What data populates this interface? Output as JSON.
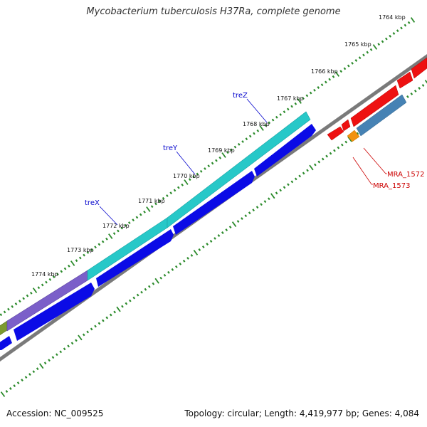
{
  "header": {
    "title": "Mycobacterium tuberculosis H37Ra, complete genome"
  },
  "footer": {
    "accession": "Accession: NC_009525",
    "summary": "Topology: circular; Length: 4,419,977 bp; Genes: 4,084"
  },
  "colors": {
    "tick": "#2a8a2a",
    "backbone": "#7a7a7a",
    "strand_forward": "#0b0be6",
    "strand_cyan": "#27c8c8",
    "strand_purple": "#7b5fc9",
    "strand_olive": "#7c9a30",
    "red_genes": "#ee1111",
    "orange_gene": "#f29211",
    "steelblue_gene": "#4682b4",
    "label_blue": "#0000cc",
    "label_red": "#cc0000"
  },
  "ruler": {
    "labels": [
      "1764 kbp",
      "1765 kbp",
      "1766 kbp",
      "1767 kbp",
      "1768 kbp",
      "1769 kbp",
      "1770 kbp",
      "1771 kbp",
      "1772 kbp",
      "1773 kbp",
      "1774 kbp"
    ]
  },
  "genes": [
    {
      "name": "treZ",
      "color_role": "label_blue"
    },
    {
      "name": "treY",
      "color_role": "label_blue"
    },
    {
      "name": "treX",
      "color_role": "label_blue"
    },
    {
      "name": "MRA_1572",
      "color_role": "label_red"
    },
    {
      "name": "MRA_1573",
      "color_role": "label_red"
    }
  ]
}
